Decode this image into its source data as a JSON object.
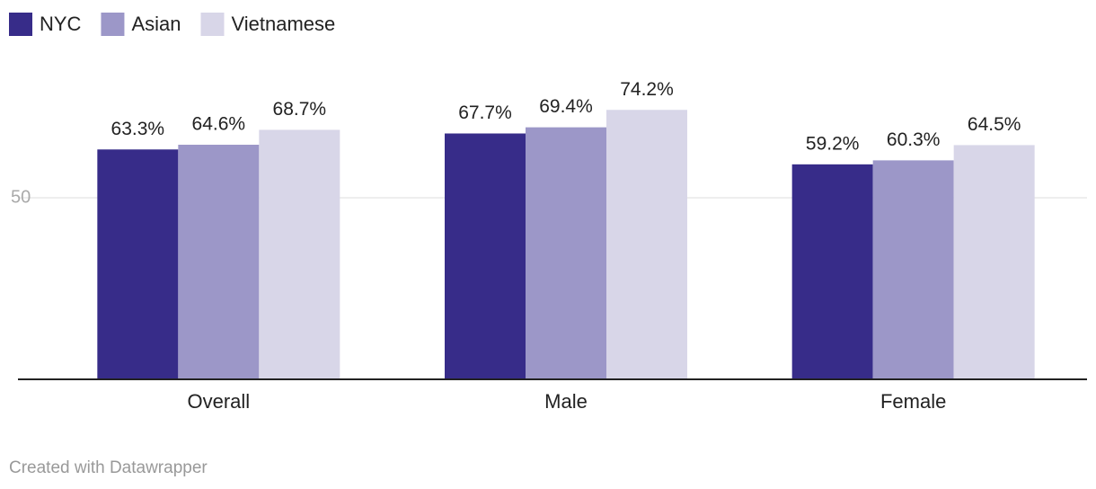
{
  "chart_data": {
    "type": "bar",
    "categories": [
      "Overall",
      "Male",
      "Female"
    ],
    "series": [
      {
        "name": "NYC",
        "color": "#372c89",
        "values": [
          63.3,
          67.7,
          59.2
        ],
        "value_labels": [
          "63.3%",
          "67.7%",
          "59.2%"
        ]
      },
      {
        "name": "Asian",
        "color": "#9c97c8",
        "values": [
          64.6,
          69.4,
          60.3
        ],
        "value_labels": [
          "64.6%",
          "69.4%",
          "60.3%"
        ]
      },
      {
        "name": "Vietnamese",
        "color": "#d8d6e8",
        "values": [
          68.7,
          74.2,
          64.5
        ],
        "value_labels": [
          "68.7%",
          "74.2%",
          "64.5%"
        ]
      }
    ],
    "ylim": [
      0,
      100
    ],
    "yticks": [
      50
    ],
    "grid": true,
    "legend": "top-left",
    "footer": "Created with Datawrapper"
  }
}
